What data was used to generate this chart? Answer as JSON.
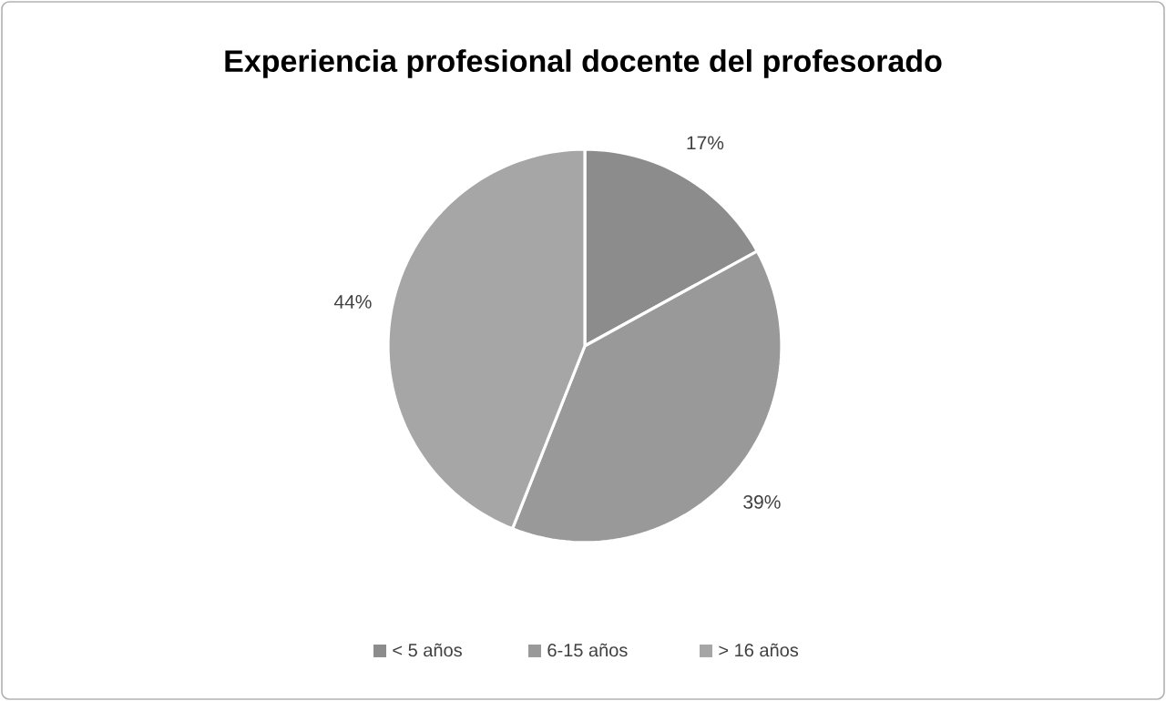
{
  "chart_data": {
    "type": "pie",
    "title": "Experiencia profesional docente del profesorado",
    "categories": [
      "< 5 años",
      "6-15 años",
      "> 16 años"
    ],
    "values": [
      17,
      39,
      44
    ],
    "value_labels": [
      "17%",
      "39%",
      "44%"
    ],
    "colors": [
      "#8c8c8c",
      "#999999",
      "#a6a6a6"
    ],
    "legend": "bottom"
  }
}
